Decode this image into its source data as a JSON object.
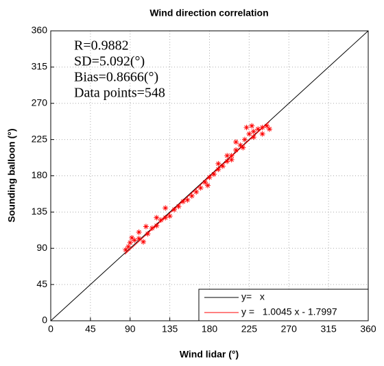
{
  "chart_data": {
    "type": "scatter",
    "title": "Wind direction correlation",
    "xlabel": "Wind lidar (°)",
    "ylabel": "Sounding balloon (°)",
    "annotations": [
      "R=0.9882",
      "SD=5.092(°)",
      "Bias=0.8666(°)",
      "Data points=548"
    ],
    "xlim": [
      0,
      360
    ],
    "ylim": [
      0,
      360
    ],
    "xticks": [
      0,
      45,
      90,
      135,
      180,
      225,
      270,
      315,
      360
    ],
    "yticks": [
      0,
      45,
      90,
      135,
      180,
      225,
      270,
      315,
      360
    ],
    "grid": true,
    "legend": "lower right",
    "points": {
      "color": "#ff0000",
      "x": [
        85,
        88,
        90,
        95,
        100,
        105,
        110,
        115,
        120,
        125,
        130,
        135,
        140,
        145,
        150,
        155,
        160,
        165,
        170,
        175,
        180,
        185,
        190,
        195,
        200,
        205,
        210,
        215,
        220,
        225,
        230,
        235,
        240,
        245,
        248,
        222,
        228,
        210,
        200,
        190,
        130,
        120,
        100,
        92,
        108,
        240,
        230,
        218,
        205,
        178
      ],
      "y": [
        88,
        92,
        97,
        100,
        102,
        98,
        108,
        115,
        118,
        125,
        128,
        130,
        138,
        142,
        148,
        150,
        155,
        160,
        165,
        172,
        178,
        182,
        188,
        192,
        198,
        205,
        212,
        218,
        225,
        232,
        235,
        238,
        240,
        242,
        238,
        240,
        242,
        222,
        205,
        195,
        140,
        128,
        110,
        103,
        117,
        232,
        228,
        215,
        200,
        168
      ]
    },
    "lines": [
      {
        "name": "y=   x",
        "color": "#000000",
        "x": [
          0,
          360
        ],
        "y": [
          0,
          360
        ]
      },
      {
        "name": "y =   1.0045 x - 1.7997",
        "color": "#ff0000",
        "x": [
          84,
          248
        ],
        "y": [
          82.58,
          247.32
        ]
      }
    ]
  }
}
